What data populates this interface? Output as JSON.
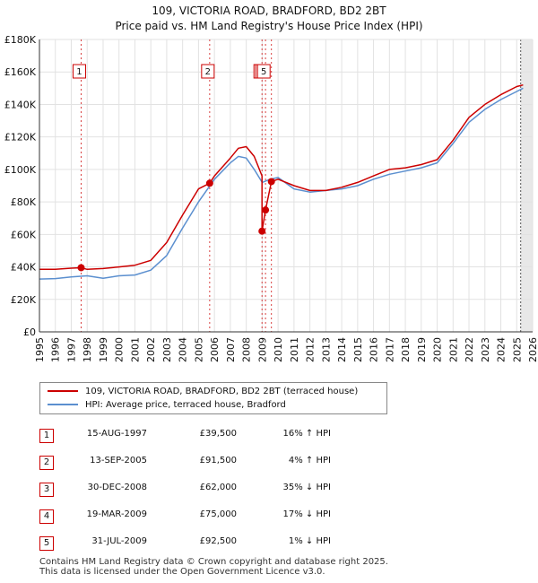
{
  "title_line1": "109, VICTORIA ROAD, BRADFORD, BD2 2BT",
  "title_line2": "Price paid vs. HM Land Registry's House Price Index (HPI)",
  "colors": {
    "property": "#cc0000",
    "hpi": "#5b8fcf",
    "event_line": "#cc0000",
    "grid": "#e2e2e2",
    "future_shade": "#e8e8e8"
  },
  "legend": {
    "property_label": "109, VICTORIA ROAD, BRADFORD, BD2 2BT (terraced house)",
    "hpi_label": "HPI: Average price, terraced house, Bradford"
  },
  "sales": [
    {
      "num": "1",
      "date": "15-AUG-1997",
      "price": "£39,500",
      "hpi": "16% ↑ HPI"
    },
    {
      "num": "2",
      "date": "13-SEP-2005",
      "price": "£91,500",
      "hpi": "4% ↑ HPI"
    },
    {
      "num": "3",
      "date": "30-DEC-2008",
      "price": "£62,000",
      "hpi": "35% ↓ HPI"
    },
    {
      "num": "4",
      "date": "19-MAR-2009",
      "price": "£75,000",
      "hpi": "17% ↓ HPI"
    },
    {
      "num": "5",
      "date": "31-JUL-2009",
      "price": "£92,500",
      "hpi": "1% ↓ HPI"
    }
  ],
  "footer_line1": "Contains HM Land Registry data © Crown copyright and database right 2025.",
  "footer_line2": "This data is licensed under the Open Government Licence v3.0.",
  "chart_data": {
    "type": "line",
    "title": "109, VICTORIA ROAD, BRADFORD, BD2 2BT — Price paid vs. HM Land Registry's House Price Index (HPI)",
    "xlabel": "",
    "ylabel": "",
    "xlim": [
      1995,
      2026
    ],
    "ylim": [
      0,
      180000
    ],
    "x_ticks": [
      1995,
      1996,
      1997,
      1998,
      1999,
      2000,
      2001,
      2002,
      2003,
      2004,
      2005,
      2006,
      2007,
      2008,
      2009,
      2010,
      2011,
      2012,
      2013,
      2014,
      2015,
      2016,
      2017,
      2018,
      2019,
      2020,
      2021,
      2022,
      2023,
      2024,
      2025,
      2026
    ],
    "y_ticks": [
      0,
      20000,
      40000,
      60000,
      80000,
      100000,
      120000,
      140000,
      160000,
      180000
    ],
    "y_tick_labels": [
      "£0",
      "£20K",
      "£40K",
      "£60K",
      "£80K",
      "£100K",
      "£120K",
      "£140K",
      "£160K",
      "£180K"
    ],
    "grid": true,
    "forecast_from": 2025.25,
    "series": [
      {
        "name": "109, VICTORIA ROAD, BRADFORD, BD2 2BT (terraced house)",
        "x": [
          1995,
          1996,
          1997,
          1997.62,
          1998,
          1999,
          2000,
          2001,
          2002,
          2003,
          2004,
          2005,
          2005.7,
          2006,
          2007,
          2007.5,
          2008,
          2008.5,
          2008.99,
          2008.99,
          2009.21,
          2009.58,
          2010,
          2011,
          2012,
          2013,
          2014,
          2015,
          2016,
          2017,
          2018,
          2019,
          2020,
          2021,
          2022,
          2023,
          2024,
          2025,
          2025.4
        ],
        "values": [
          38500,
          38500,
          39200,
          39500,
          38500,
          39000,
          40000,
          41000,
          44000,
          55000,
          72000,
          88000,
          91500,
          96000,
          107000,
          113000,
          114000,
          108000,
          96000,
          62000,
          75000,
          92500,
          94000,
          90000,
          87000,
          87000,
          89000,
          92000,
          96000,
          100000,
          101000,
          103000,
          106000,
          118000,
          132000,
          140000,
          146000,
          151000,
          152000
        ]
      },
      {
        "name": "HPI: Average price, terraced house, Bradford",
        "x": [
          1995,
          1996,
          1997,
          1998,
          1999,
          2000,
          2001,
          2002,
          2003,
          2004,
          2005,
          2006,
          2007,
          2007.5,
          2008,
          2008.5,
          2009,
          2009.5,
          2010,
          2011,
          2012,
          2013,
          2014,
          2015,
          2016,
          2017,
          2018,
          2019,
          2020,
          2021,
          2022,
          2023,
          2024,
          2025,
          2025.4
        ],
        "values": [
          32500,
          32800,
          33800,
          34500,
          33000,
          34500,
          35000,
          38000,
          47000,
          64000,
          80000,
          94000,
          104000,
          108000,
          107000,
          100000,
          92000,
          94000,
          95000,
          88000,
          86000,
          87000,
          88000,
          90000,
          94000,
          97000,
          99000,
          101000,
          104000,
          116000,
          129000,
          137000,
          143000,
          148000,
          150000
        ]
      }
    ],
    "sale_markers": [
      {
        "label": "1",
        "x": 1997.62,
        "y": 39500
      },
      {
        "label": "2",
        "x": 2005.7,
        "y": 91500
      },
      {
        "label": "3",
        "x": 2008.99,
        "y": 62000
      },
      {
        "label": "4",
        "x": 2009.21,
        "y": 75000
      },
      {
        "label": "5",
        "x": 2009.58,
        "y": 92500
      }
    ]
  }
}
